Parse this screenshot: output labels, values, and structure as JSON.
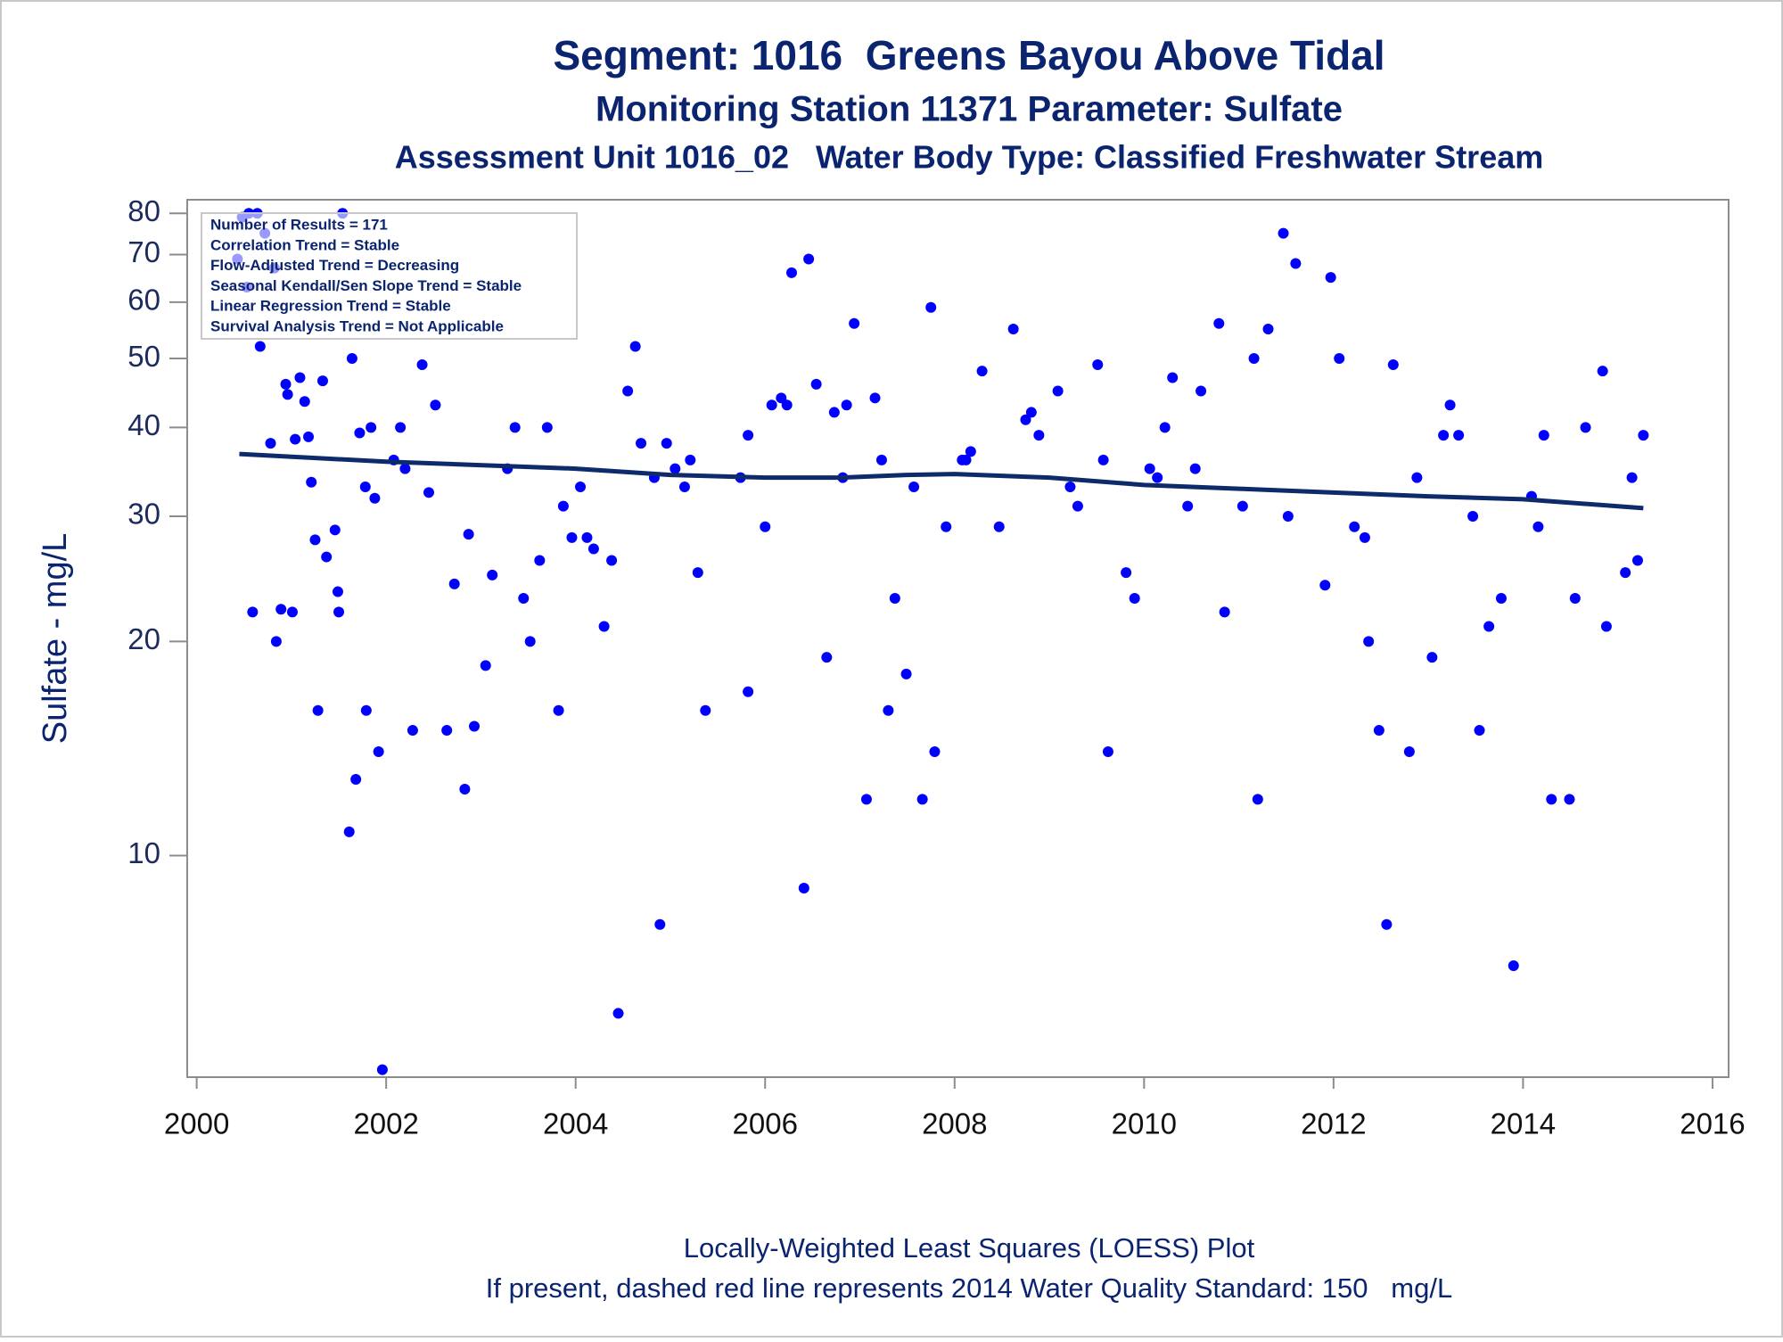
{
  "chart_data": {
    "type": "scatter",
    "titles": [
      "Segment: 1016  Greens Bayou Above Tidal",
      "Monitoring Station 11371 Parameter: Sulfate",
      "Assessment Unit 1016_02   Water Body Type: Classified Freshwater Stream"
    ],
    "ylabel": "Sulfate - mg/L",
    "annotation": [
      "Number of Results = 171",
      "Correlation Trend = Stable",
      "Flow-Adjusted Trend = Decreasing",
      "Seasonal Kendall/Sen Slope Trend = Stable",
      "Linear Regression Trend = Stable",
      "Survival Analysis Trend = Not Applicable"
    ],
    "footnotes": [
      "Locally-Weighted Least Squares (LOESS) Plot",
      "If present, dashed red line represents 2014 Water Quality Standard: 150   mg/L"
    ],
    "ylog": true,
    "xlim": [
      1999.9,
      2016.17
    ],
    "xticks": [
      2000,
      2002,
      2004,
      2006,
      2008,
      2010,
      2012,
      2014,
      2016
    ],
    "ylim": [
      4.88,
      83.6
    ],
    "yticks": [
      10,
      20,
      30,
      40,
      50,
      60,
      70,
      80
    ],
    "series": [
      {
        "type": "scatter",
        "color": "#0000ff",
        "x": [
          2000.43,
          2000.48,
          2000.53,
          2000.55,
          2000.59,
          2000.64,
          2000.67,
          2000.72,
          2000.78,
          2000.82,
          2000.84,
          2000.89,
          2000.94,
          2000.96,
          2001.01,
          2001.04,
          2001.09,
          2001.14,
          2001.18,
          2001.21,
          2001.25,
          2001.28,
          2001.33,
          2001.37,
          2001.46,
          2001.49,
          2001.5,
          2001.54,
          2001.61,
          2001.64,
          2001.68,
          2001.72,
          2001.78,
          2001.79,
          2001.84,
          2001.88,
          2001.92,
          2001.96,
          2002.08,
          2002.15,
          2002.2,
          2002.28,
          2002.38,
          2002.45,
          2002.52,
          2002.64,
          2002.72,
          2002.83,
          2002.87,
          2002.93,
          2003.05,
          2003.12,
          2003.28,
          2003.36,
          2003.45,
          2003.52,
          2003.62,
          2003.7,
          2003.82,
          2003.87,
          2003.96,
          2004.05,
          2004.12,
          2004.19,
          2004.3,
          2004.38,
          2004.45,
          2004.55,
          2004.63,
          2004.69,
          2004.83,
          2004.89,
          2004.96,
          2005.05,
          2005.15,
          2005.21,
          2005.29,
          2005.37,
          2005.74,
          2005.82,
          2005.82,
          2006.0,
          2006.07,
          2006.17,
          2006.23,
          2006.28,
          2006.41,
          2006.46,
          2006.54,
          2006.65,
          2006.73,
          2006.82,
          2006.86,
          2006.94,
          2007.07,
          2007.16,
          2007.23,
          2007.3,
          2007.37,
          2007.49,
          2007.57,
          2007.66,
          2007.75,
          2007.79,
          2007.91,
          2008.08,
          2008.12,
          2008.17,
          2008.29,
          2008.47,
          2008.62,
          2008.75,
          2008.81,
          2008.89,
          2009.09,
          2009.22,
          2009.3,
          2009.51,
          2009.57,
          2009.62,
          2009.81,
          2009.9,
          2010.06,
          2010.14,
          2010.22,
          2010.3,
          2010.46,
          2010.54,
          2010.6,
          2010.79,
          2010.85,
          2011.04,
          2011.16,
          2011.2,
          2011.31,
          2011.47,
          2011.52,
          2011.6,
          2011.91,
          2011.97,
          2012.06,
          2012.22,
          2012.33,
          2012.37,
          2012.48,
          2012.56,
          2012.63,
          2012.8,
          2012.88,
          2013.04,
          2013.16,
          2013.23,
          2013.32,
          2013.47,
          2013.54,
          2013.64,
          2013.77,
          2013.9,
          2014.09,
          2014.16,
          2014.22,
          2014.3,
          2014.49,
          2014.55,
          2014.66,
          2014.84,
          2014.88,
          2015.08,
          2015.15,
          2015.21,
          2015.27
        ],
        "values": [
          69,
          79,
          63,
          80,
          22,
          80,
          52,
          75,
          38,
          67,
          20,
          22.2,
          46,
          44.5,
          22,
          38.5,
          47,
          43.5,
          38.8,
          33.5,
          27.8,
          16,
          46.5,
          26.3,
          28.7,
          23.5,
          22,
          80,
          10.8,
          50,
          12.8,
          39.3,
          33,
          16,
          40,
          31.8,
          14,
          5,
          36,
          40,
          35,
          15,
          49,
          32.4,
          43,
          15,
          24.1,
          12.4,
          28.3,
          15.2,
          18.5,
          24.8,
          35,
          40,
          23,
          20,
          26,
          40,
          16,
          31,
          28,
          33,
          28,
          27,
          21,
          26,
          6,
          45,
          52,
          38,
          34,
          8,
          38,
          35,
          33,
          36,
          25,
          16,
          34,
          17,
          39,
          29,
          43,
          44,
          43,
          66,
          9,
          69,
          46,
          19,
          42,
          34,
          43,
          56,
          12,
          44,
          36,
          16,
          23,
          18,
          33,
          12,
          59,
          14,
          29,
          36,
          36,
          37,
          48,
          29,
          55,
          41,
          42,
          39,
          45,
          33,
          31,
          49,
          36,
          14,
          25,
          23,
          35,
          34,
          40,
          47,
          31,
          35,
          45,
          56,
          22,
          31,
          50,
          12,
          55,
          75,
          30,
          68,
          24,
          65,
          50,
          29,
          28,
          20,
          15,
          8,
          49,
          14,
          34,
          19,
          39,
          43,
          39,
          30,
          15,
          21,
          23,
          7,
          32,
          29,
          39,
          12,
          12,
          23,
          40,
          48,
          21,
          25,
          34,
          26,
          39
        ]
      },
      {
        "type": "line",
        "color": "#0d2a6b",
        "x": [
          2000.45,
          2002,
          2004,
          2005,
          2006,
          2006.8,
          2007.5,
          2008,
          2009,
          2010,
          2011,
          2012,
          2013,
          2014,
          2015.27
        ],
        "values": [
          36.7,
          35.8,
          35,
          34.3,
          34,
          34,
          34.3,
          34.4,
          34,
          33.2,
          32.8,
          32.4,
          32,
          31.7,
          30.8
        ]
      }
    ]
  }
}
